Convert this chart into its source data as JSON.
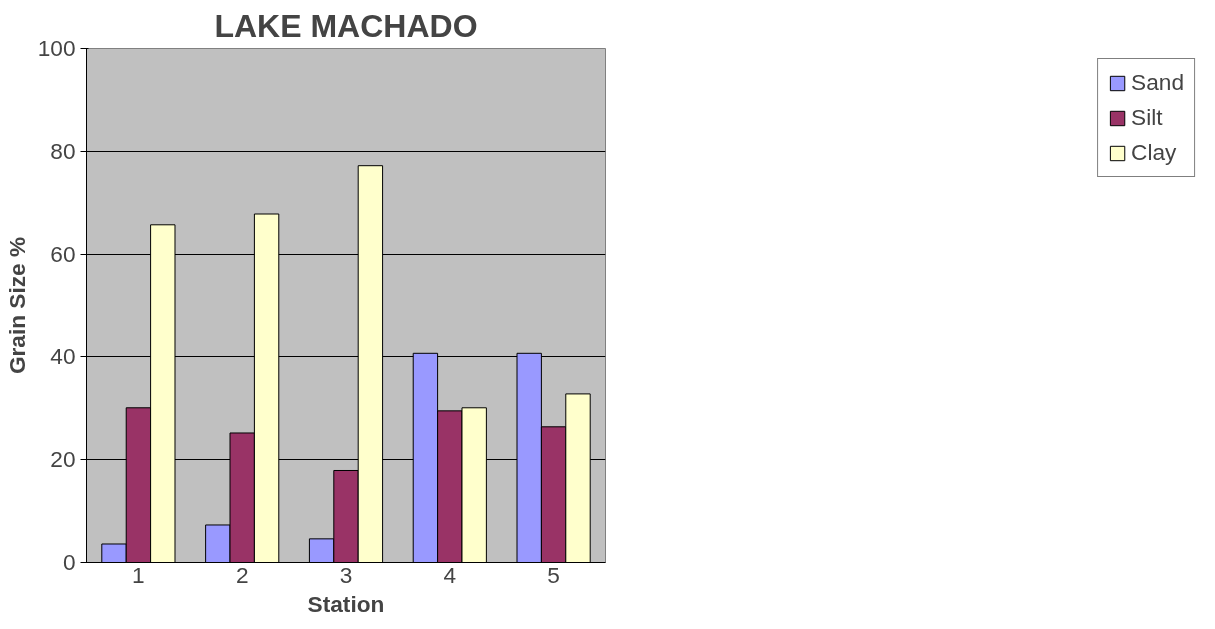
{
  "chart_data": {
    "type": "bar",
    "title": "LAKE MACHADO",
    "xlabel": "Station",
    "ylabel": "Grain Size %",
    "categories": [
      "1",
      "2",
      "3",
      "4",
      "5"
    ],
    "series": [
      {
        "name": "Sand",
        "color": "#9999ff",
        "values": [
          3.6,
          7.3,
          4.6,
          40.7,
          40.7
        ]
      },
      {
        "name": "Silt",
        "color": "#993366",
        "values": [
          30.1,
          25.2,
          17.9,
          29.5,
          26.4
        ]
      },
      {
        "name": "Clay",
        "color": "#ffffcc",
        "values": [
          65.7,
          67.8,
          77.2,
          30.1,
          32.8
        ]
      }
    ],
    "ylim": [
      0,
      100
    ],
    "yticks": [
      0,
      20,
      40,
      60,
      80,
      100
    ],
    "grid": "y",
    "legend": "right"
  }
}
